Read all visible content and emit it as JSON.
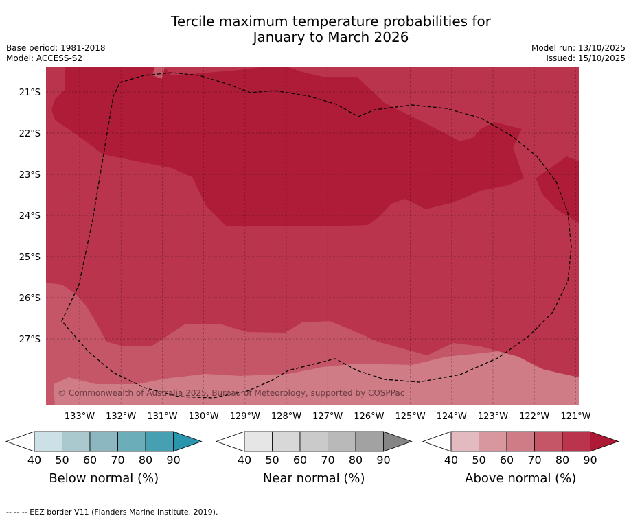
{
  "title": {
    "line1": "Tercile maximum temperature probabilities for",
    "line2": "January to March 2026"
  },
  "meta_left": {
    "base_period": "Base period: 1981-2018",
    "model": "Model: ACCESS-S2"
  },
  "meta_right": {
    "model_run": "Model run: 13/10/2025",
    "issued": "Issued: 15/10/2025"
  },
  "map": {
    "lat_labels": [
      "21°S",
      "22°S",
      "23°S",
      "24°S",
      "25°S",
      "26°S",
      "27°S"
    ],
    "lon_labels": [
      "133°W",
      "132°W",
      "131°W",
      "130°W",
      "129°W",
      "128°W",
      "127°W",
      "126°W",
      "125°W",
      "124°W",
      "123°W",
      "122°W",
      "121°W"
    ],
    "copyright": "© Commonwealth of Australia 2025, Bureau of Meteorology, supported by COSPPac",
    "colors": {
      "above_60": "#cf7c87",
      "above_70": "#c45667",
      "above_80": "#b9344c",
      "above_90": "#af1c37",
      "eez_line": "#000000"
    }
  },
  "legends": [
    {
      "id": "below",
      "label": "Below normal (%)",
      "ticks": [
        "40",
        "50",
        "60",
        "70",
        "80",
        "90"
      ],
      "colors": [
        "#cbe1e6",
        "#a9c9ce",
        "#8cb7c1",
        "#6badb8",
        "#46a0b1",
        "#2996ad"
      ]
    },
    {
      "id": "near",
      "label": "Near normal (%)",
      "ticks": [
        "40",
        "50",
        "60",
        "70",
        "80",
        "90"
      ],
      "colors": [
        "#e6e6e6",
        "#d8d8d8",
        "#cacaca",
        "#b9b9b9",
        "#a2a2a2",
        "#858585"
      ]
    },
    {
      "id": "above",
      "label": "Above normal (%)",
      "ticks": [
        "40",
        "50",
        "60",
        "70",
        "80",
        "90"
      ],
      "colors": [
        "#e2bac0",
        "#d8979f",
        "#cf7c87",
        "#c45667",
        "#b9344c",
        "#ae1a36"
      ]
    }
  ],
  "footer": "--  --  -- EEZ border V11 (Flanders Marine Institute, 2019)."
}
